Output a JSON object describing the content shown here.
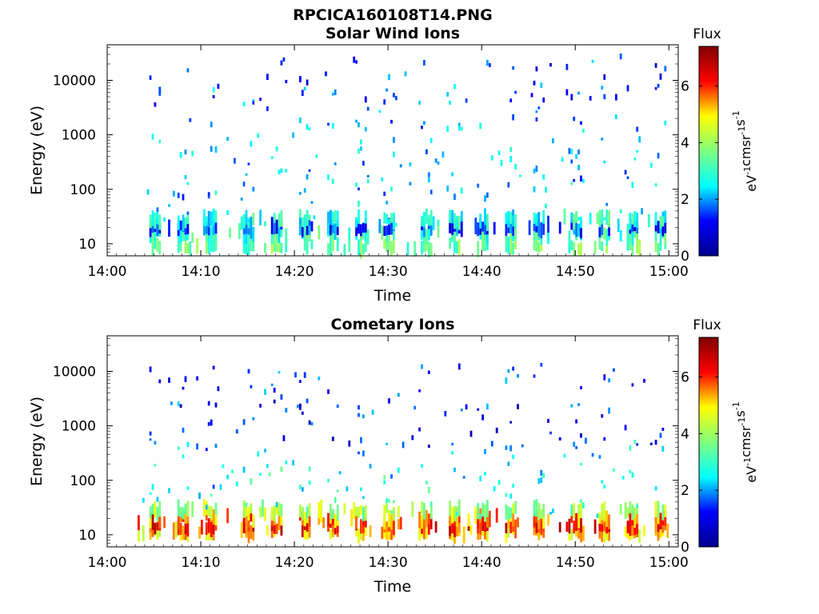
{
  "figure": {
    "title": "RPCICA160108T14.PNG"
  },
  "colormap": {
    "name": "jet",
    "stops": [
      "#00008f",
      "#0000ff",
      "#00ffff",
      "#7fff7f",
      "#ffff00",
      "#ff0000",
      "#7f0000"
    ]
  },
  "chart_data": [
    {
      "type": "heatmap",
      "title": "Solar Wind Ions",
      "xlabel": "Time",
      "ylabel": "Energy (eV)",
      "y_scale": "log",
      "ylim": [
        6,
        45000
      ],
      "xlim": [
        "14:00",
        "15:01"
      ],
      "x_ticks": [
        "14:00",
        "14:10",
        "14:20",
        "14:30",
        "14:40",
        "14:50",
        "15:00"
      ],
      "y_ticks": [
        "10",
        "100",
        "1000",
        "10000"
      ],
      "colorbar": {
        "title": "Flux",
        "label": "eV-1cm-2sr-1s-1",
        "range": [
          0,
          7.4
        ],
        "ticks": [
          "0",
          "2",
          "4",
          "6"
        ]
      },
      "data_start": "14:03",
      "data_end": "15:00",
      "bands": [
        {
          "energy_eV": 9,
          "flux": 3.5
        },
        {
          "energy_eV": 15,
          "flux": 3.0
        },
        {
          "energy_eV": 20,
          "flux": 1.5
        },
        {
          "energy_eV": 28,
          "flux": 2.8
        },
        {
          "energy_eV": 60,
          "flux": 2.4
        },
        {
          "energy_eV": 200,
          "flux": 2.0
        },
        {
          "energy_eV": 800,
          "flux": 2.2
        },
        {
          "energy_eV": 3000,
          "flux": 1.8
        },
        {
          "energy_eV": 10000,
          "flux": 1.5
        }
      ],
      "bursts": [
        "14:05",
        "14:08",
        "14:11",
        "14:15",
        "14:18",
        "14:21",
        "14:24",
        "14:27",
        "14:30",
        "14:34",
        "14:37",
        "14:40",
        "14:43",
        "14:46",
        "14:50",
        "14:53",
        "14:56",
        "14:59"
      ]
    },
    {
      "type": "heatmap",
      "title": "Cometary Ions",
      "xlabel": "Time",
      "ylabel": "Energy (eV)",
      "y_scale": "log",
      "ylim": [
        6,
        45000
      ],
      "xlim": [
        "14:00",
        "15:01"
      ],
      "x_ticks": [
        "14:00",
        "14:10",
        "14:20",
        "14:30",
        "14:40",
        "14:50",
        "15:00"
      ],
      "y_ticks": [
        "10",
        "100",
        "1000",
        "10000"
      ],
      "colorbar": {
        "title": "Flux",
        "label": "eV-1cm-2sr-1s-1",
        "range": [
          0,
          7.4
        ],
        "ticks": [
          "0",
          "2",
          "4",
          "6"
        ]
      },
      "data_start": "14:03",
      "data_end": "15:00",
      "bands": [
        {
          "energy_eV": 11,
          "flux": 5.0
        },
        {
          "energy_eV": 15,
          "flux": 6.2
        },
        {
          "energy_eV": 20,
          "flux": 5.5
        },
        {
          "energy_eV": 28,
          "flux": 4.0
        },
        {
          "energy_eV": 60,
          "flux": 2.8
        },
        {
          "energy_eV": 200,
          "flux": 2.4
        },
        {
          "energy_eV": 1000,
          "flux": 1.2
        },
        {
          "energy_eV": 5000,
          "flux": 1.5
        }
      ],
      "bursts": [
        "14:05",
        "14:08",
        "14:11",
        "14:15",
        "14:18",
        "14:21",
        "14:24",
        "14:27",
        "14:30",
        "14:34",
        "14:37",
        "14:40",
        "14:43",
        "14:46",
        "14:50",
        "14:53",
        "14:56",
        "14:59"
      ]
    }
  ]
}
